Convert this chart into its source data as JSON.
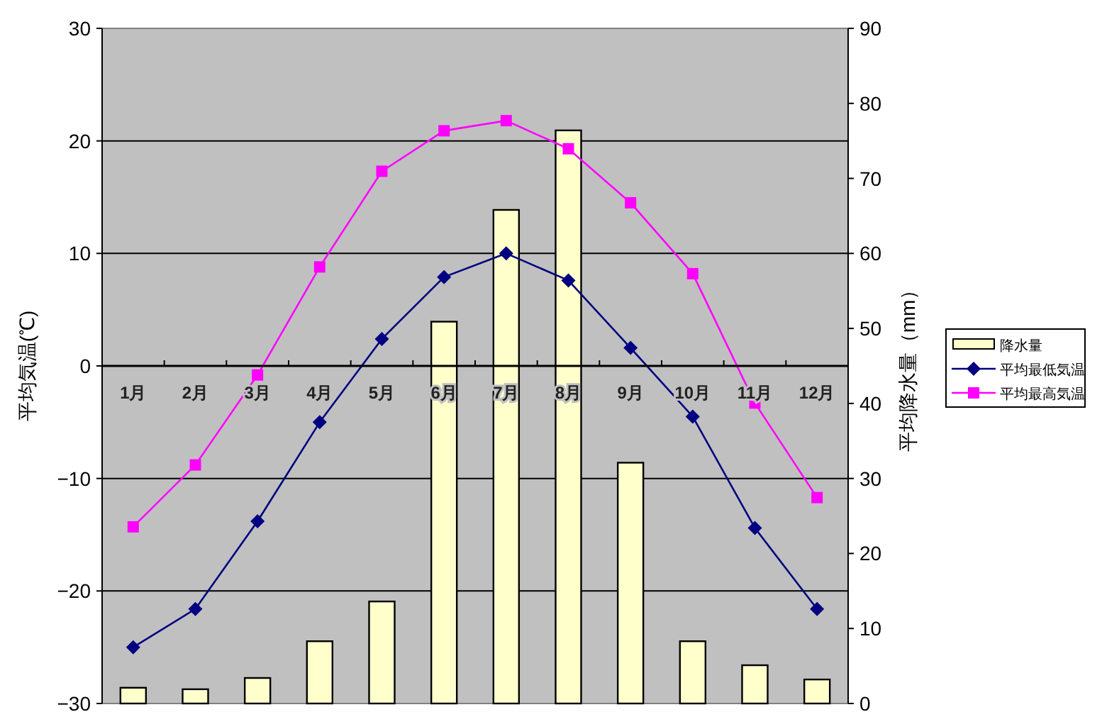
{
  "chart_data": {
    "type": "bar",
    "categories": [
      "1月",
      "2月",
      "3月",
      "4月",
      "5月",
      "6月",
      "7月",
      "8月",
      "9月",
      "10月",
      "11月",
      "12月"
    ],
    "series": [
      {
        "name": "降水量",
        "axis": "y2",
        "color": "#ffffcc",
        "values": [
          2.1,
          1.9,
          3.4,
          8.3,
          13.6,
          50.9,
          65.8,
          76.4,
          32.1,
          8.3,
          5.1,
          3.2
        ]
      },
      {
        "name": "平均最低気温",
        "type": "line",
        "marker": "diamond",
        "color": "#000080",
        "values": [
          -25.0,
          -21.6,
          -13.8,
          -5.0,
          2.4,
          7.9,
          10.0,
          7.6,
          1.6,
          -4.5,
          -14.4,
          -21.6
        ]
      },
      {
        "name": "平均最高気温",
        "type": "line",
        "marker": "square",
        "color": "#ff00ff",
        "values": [
          -14.3,
          -8.8,
          -0.8,
          8.8,
          17.3,
          20.9,
          21.8,
          19.3,
          14.5,
          8.2,
          -3.3,
          -11.7
        ]
      }
    ],
    "ylabel": "平均気温(℃)",
    "y2label": "平均降水量（mm）",
    "ylim": [
      -30,
      30
    ],
    "yticks": [
      -30,
      -20,
      -10,
      0,
      10,
      20,
      30
    ],
    "y2lim": [
      0,
      90
    ],
    "y2ticks": [
      0,
      10,
      20,
      30,
      40,
      50,
      60,
      70,
      80,
      90
    ],
    "grid": "y",
    "legend": "right"
  }
}
